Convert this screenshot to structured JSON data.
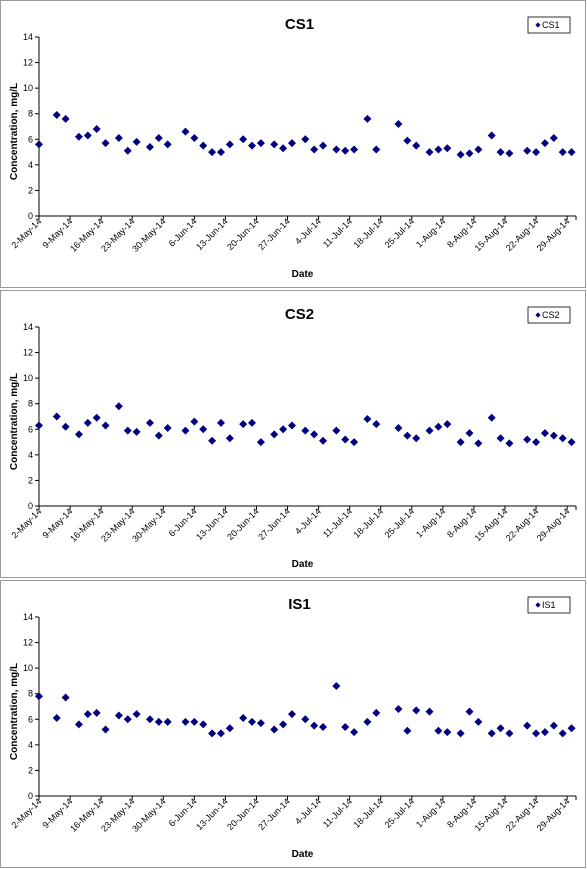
{
  "chart_data": [
    {
      "type": "scatter",
      "title": "CS1",
      "xlabel": "Date",
      "ylabel": "Concentration, mg/L",
      "ylim": [
        0,
        14
      ],
      "yticks": [
        0,
        2,
        4,
        6,
        8,
        10,
        12,
        14
      ],
      "xlim": [
        "2014-05-02",
        "2014-08-31"
      ],
      "xtick_labels": [
        "2-May-14",
        "9-May-14",
        "16-May-14",
        "23-May-14",
        "30-May-14",
        "6-Jun-14",
        "13-Jun-14",
        "20-Jun-14",
        "27-Jun-14",
        "4-Jul-14",
        "11-Jul-14",
        "18-Jul-14",
        "25-Jul-14",
        "1-Aug-14",
        "8-Aug-14",
        "15-Aug-14",
        "22-Aug-14",
        "29-Aug-14"
      ],
      "legend": "top-right",
      "marker_color": "#000080",
      "series": [
        {
          "name": "CS1",
          "x": [
            "2014-05-02",
            "2014-05-06",
            "2014-05-08",
            "2014-05-11",
            "2014-05-13",
            "2014-05-15",
            "2014-05-17",
            "2014-05-20",
            "2014-05-22",
            "2014-05-24",
            "2014-05-27",
            "2014-05-29",
            "2014-05-31",
            "2014-06-04",
            "2014-06-06",
            "2014-06-08",
            "2014-06-10",
            "2014-06-12",
            "2014-06-14",
            "2014-06-17",
            "2014-06-19",
            "2014-06-21",
            "2014-06-24",
            "2014-06-26",
            "2014-06-28",
            "2014-07-01",
            "2014-07-03",
            "2014-07-05",
            "2014-07-08",
            "2014-07-10",
            "2014-07-12",
            "2014-07-15",
            "2014-07-17",
            "2014-07-22",
            "2014-07-24",
            "2014-07-26",
            "2014-07-29",
            "2014-07-31",
            "2014-08-02",
            "2014-08-05",
            "2014-08-07",
            "2014-08-09",
            "2014-08-12",
            "2014-08-14",
            "2014-08-16",
            "2014-08-20",
            "2014-08-22",
            "2014-08-24",
            "2014-08-26",
            "2014-08-28",
            "2014-08-30"
          ],
          "y": [
            5.6,
            7.9,
            7.6,
            6.2,
            6.3,
            6.8,
            5.7,
            6.1,
            5.1,
            5.8,
            5.4,
            6.1,
            5.6,
            6.6,
            6.1,
            5.5,
            5.0,
            5.0,
            5.6,
            6.0,
            5.5,
            5.7,
            5.6,
            5.3,
            5.7,
            6.0,
            5.2,
            5.5,
            5.2,
            5.1,
            5.2,
            7.6,
            5.2,
            7.2,
            5.9,
            5.5,
            5.0,
            5.2,
            5.3,
            4.8,
            4.9,
            5.2,
            6.3,
            5.0,
            4.9,
            5.1,
            5.0,
            5.7,
            6.1,
            5.0,
            5.0
          ]
        }
      ]
    },
    {
      "type": "scatter",
      "title": "CS2",
      "xlabel": "Date",
      "ylabel": "Concentration, mg/L",
      "ylim": [
        0,
        14
      ],
      "yticks": [
        0,
        2,
        4,
        6,
        8,
        10,
        12,
        14
      ],
      "xlim": [
        "2014-05-02",
        "2014-08-31"
      ],
      "xtick_labels": [
        "2-May-14",
        "9-May-14",
        "16-May-14",
        "23-May-14",
        "30-May-14",
        "6-Jun-14",
        "13-Jun-14",
        "20-Jun-14",
        "27-Jun-14",
        "4-Jul-14",
        "11-Jul-14",
        "18-Jul-14",
        "25-Jul-14",
        "1-Aug-14",
        "8-Aug-14",
        "15-Aug-14",
        "22-Aug-14",
        "29-Aug-14"
      ],
      "legend": "top-right",
      "marker_color": "#000080",
      "series": [
        {
          "name": "CS2",
          "x": [
            "2014-05-02",
            "2014-05-06",
            "2014-05-08",
            "2014-05-11",
            "2014-05-13",
            "2014-05-15",
            "2014-05-17",
            "2014-05-20",
            "2014-05-22",
            "2014-05-24",
            "2014-05-27",
            "2014-05-29",
            "2014-05-31",
            "2014-06-04",
            "2014-06-06",
            "2014-06-08",
            "2014-06-10",
            "2014-06-12",
            "2014-06-14",
            "2014-06-17",
            "2014-06-19",
            "2014-06-21",
            "2014-06-24",
            "2014-06-26",
            "2014-06-28",
            "2014-07-01",
            "2014-07-03",
            "2014-07-05",
            "2014-07-08",
            "2014-07-10",
            "2014-07-12",
            "2014-07-15",
            "2014-07-17",
            "2014-07-22",
            "2014-07-24",
            "2014-07-26",
            "2014-07-29",
            "2014-07-31",
            "2014-08-02",
            "2014-08-05",
            "2014-08-07",
            "2014-08-09",
            "2014-08-12",
            "2014-08-14",
            "2014-08-16",
            "2014-08-20",
            "2014-08-22",
            "2014-08-24",
            "2014-08-26",
            "2014-08-28",
            "2014-08-30"
          ],
          "y": [
            6.3,
            7.0,
            6.2,
            5.6,
            6.5,
            6.9,
            6.3,
            7.8,
            5.9,
            5.8,
            6.5,
            5.5,
            6.1,
            5.9,
            6.6,
            6.0,
            5.1,
            6.5,
            5.3,
            6.4,
            6.5,
            5.0,
            5.6,
            6.0,
            6.3,
            5.9,
            5.6,
            5.1,
            5.9,
            5.2,
            5.0,
            6.8,
            6.4,
            6.1,
            5.5,
            5.3,
            5.9,
            6.2,
            6.4,
            5.0,
            5.7,
            4.9,
            6.9,
            5.3,
            4.9,
            5.2,
            5.0,
            5.7,
            5.5,
            5.3,
            5.0
          ]
        }
      ]
    },
    {
      "type": "scatter",
      "title": "IS1",
      "xlabel": "Date",
      "ylabel": "Concentration, mg/L",
      "ylim": [
        0,
        14
      ],
      "yticks": [
        0,
        2,
        4,
        6,
        8,
        10,
        12,
        14
      ],
      "xlim": [
        "2014-05-02",
        "2014-08-31"
      ],
      "xtick_labels": [
        "2-May-14",
        "9-May-14",
        "16-May-14",
        "23-May-14",
        "30-May-14",
        "6-Jun-14",
        "13-Jun-14",
        "20-Jun-14",
        "27-Jun-14",
        "4-Jul-14",
        "11-Jul-14",
        "18-Jul-14",
        "25-Jul-14",
        "1-Aug-14",
        "8-Aug-14",
        "15-Aug-14",
        "22-Aug-14",
        "29-Aug-14"
      ],
      "legend": "top-right",
      "marker_color": "#000080",
      "series": [
        {
          "name": "IS1",
          "x": [
            "2014-05-02",
            "2014-05-06",
            "2014-05-08",
            "2014-05-11",
            "2014-05-13",
            "2014-05-15",
            "2014-05-17",
            "2014-05-20",
            "2014-05-22",
            "2014-05-24",
            "2014-05-27",
            "2014-05-29",
            "2014-05-31",
            "2014-06-04",
            "2014-06-06",
            "2014-06-08",
            "2014-06-10",
            "2014-06-12",
            "2014-06-14",
            "2014-06-17",
            "2014-06-19",
            "2014-06-21",
            "2014-06-24",
            "2014-06-26",
            "2014-06-28",
            "2014-07-01",
            "2014-07-03",
            "2014-07-05",
            "2014-07-08",
            "2014-07-10",
            "2014-07-12",
            "2014-07-15",
            "2014-07-17",
            "2014-07-22",
            "2014-07-24",
            "2014-07-26",
            "2014-07-29",
            "2014-07-31",
            "2014-08-02",
            "2014-08-05",
            "2014-08-07",
            "2014-08-09",
            "2014-08-12",
            "2014-08-14",
            "2014-08-16",
            "2014-08-20",
            "2014-08-22",
            "2014-08-24",
            "2014-08-26",
            "2014-08-28",
            "2014-08-30"
          ],
          "y": [
            7.8,
            6.1,
            7.7,
            5.6,
            6.4,
            6.5,
            5.2,
            6.3,
            6.0,
            6.4,
            6.0,
            5.8,
            5.8,
            5.8,
            5.8,
            5.6,
            4.9,
            4.9,
            5.3,
            6.1,
            5.8,
            5.7,
            5.2,
            5.6,
            6.4,
            6.0,
            5.5,
            5.4,
            8.6,
            5.4,
            5.0,
            5.8,
            6.5,
            6.8,
            5.1,
            6.7,
            6.6,
            5.1,
            5.0,
            4.9,
            6.6,
            5.8,
            4.9,
            5.3,
            4.9,
            5.5,
            4.9,
            5.0,
            5.5,
            4.9,
            5.3
          ]
        }
      ]
    }
  ]
}
